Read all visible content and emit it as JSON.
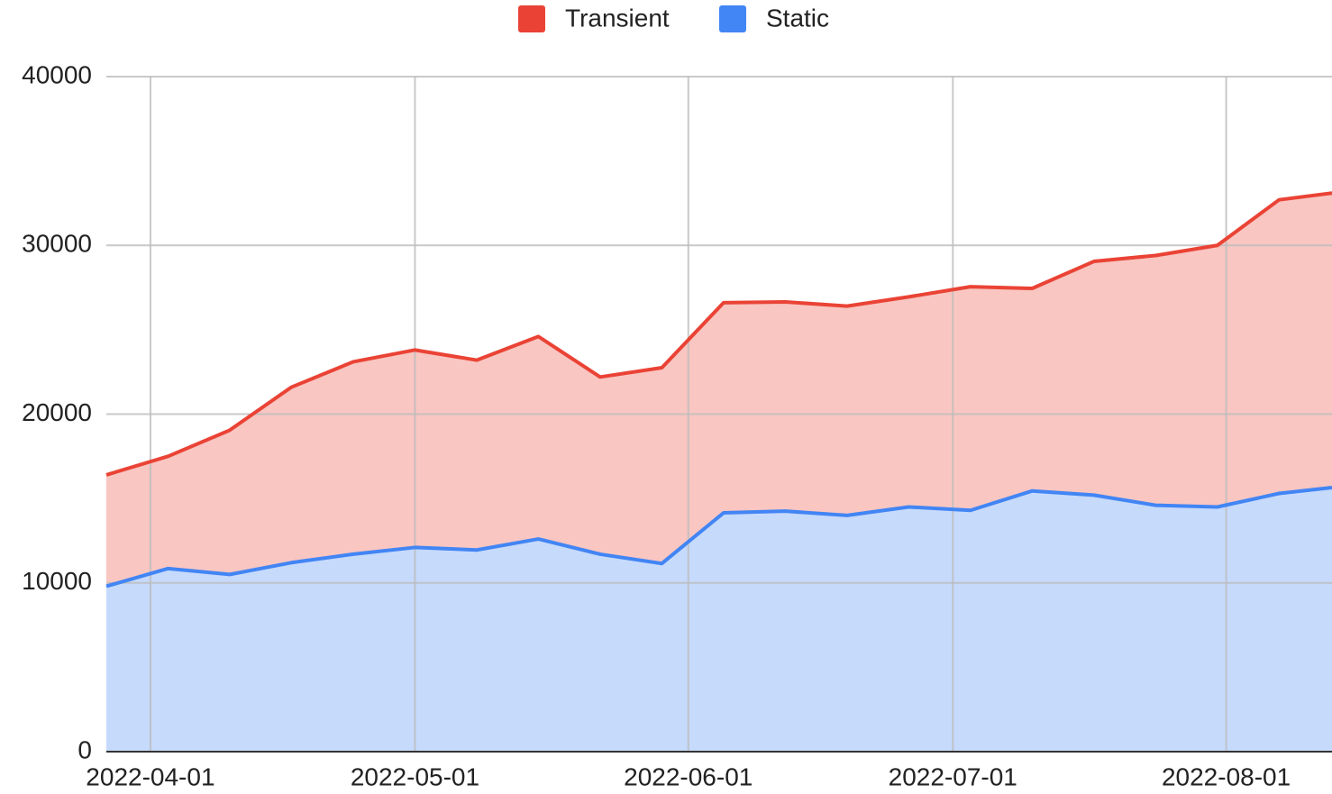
{
  "chart_data": {
    "type": "stacked_area",
    "x": [
      "2022-03-27",
      "2022-04-03",
      "2022-04-10",
      "2022-04-17",
      "2022-04-24",
      "2022-05-01",
      "2022-05-08",
      "2022-05-15",
      "2022-05-22",
      "2022-05-29",
      "2022-06-05",
      "2022-06-12",
      "2022-06-19",
      "2022-06-26",
      "2022-07-03",
      "2022-07-10",
      "2022-07-17",
      "2022-07-24",
      "2022-07-31",
      "2022-08-07",
      "2022-08-13"
    ],
    "series": [
      {
        "name": "Transient",
        "color": "#ea4335",
        "values": [
          6600,
          6650,
          8550,
          10400,
          11400,
          11700,
          11250,
          12000,
          10500,
          11600,
          12450,
          12400,
          12400,
          12450,
          13250,
          12000,
          13850,
          14800,
          15500,
          17400,
          17450
        ]
      },
      {
        "name": "Static",
        "color": "#4285f4",
        "values": [
          9800,
          10850,
          10500,
          11200,
          11700,
          12100,
          11950,
          12600,
          11700,
          11150,
          14150,
          14250,
          14000,
          14500,
          14300,
          15450,
          15200,
          14600,
          14500,
          15300,
          15650
        ]
      }
    ],
    "xlim": [
      "2022-03-27",
      "2022-08-13"
    ],
    "xticks": [
      "2022-04-01",
      "2022-05-01",
      "2022-06-01",
      "2022-07-01",
      "2022-08-01"
    ],
    "ylim": [
      0,
      40000
    ],
    "yticks": [
      0,
      10000,
      20000,
      30000,
      40000
    ],
    "grid": true,
    "legend": "top"
  }
}
